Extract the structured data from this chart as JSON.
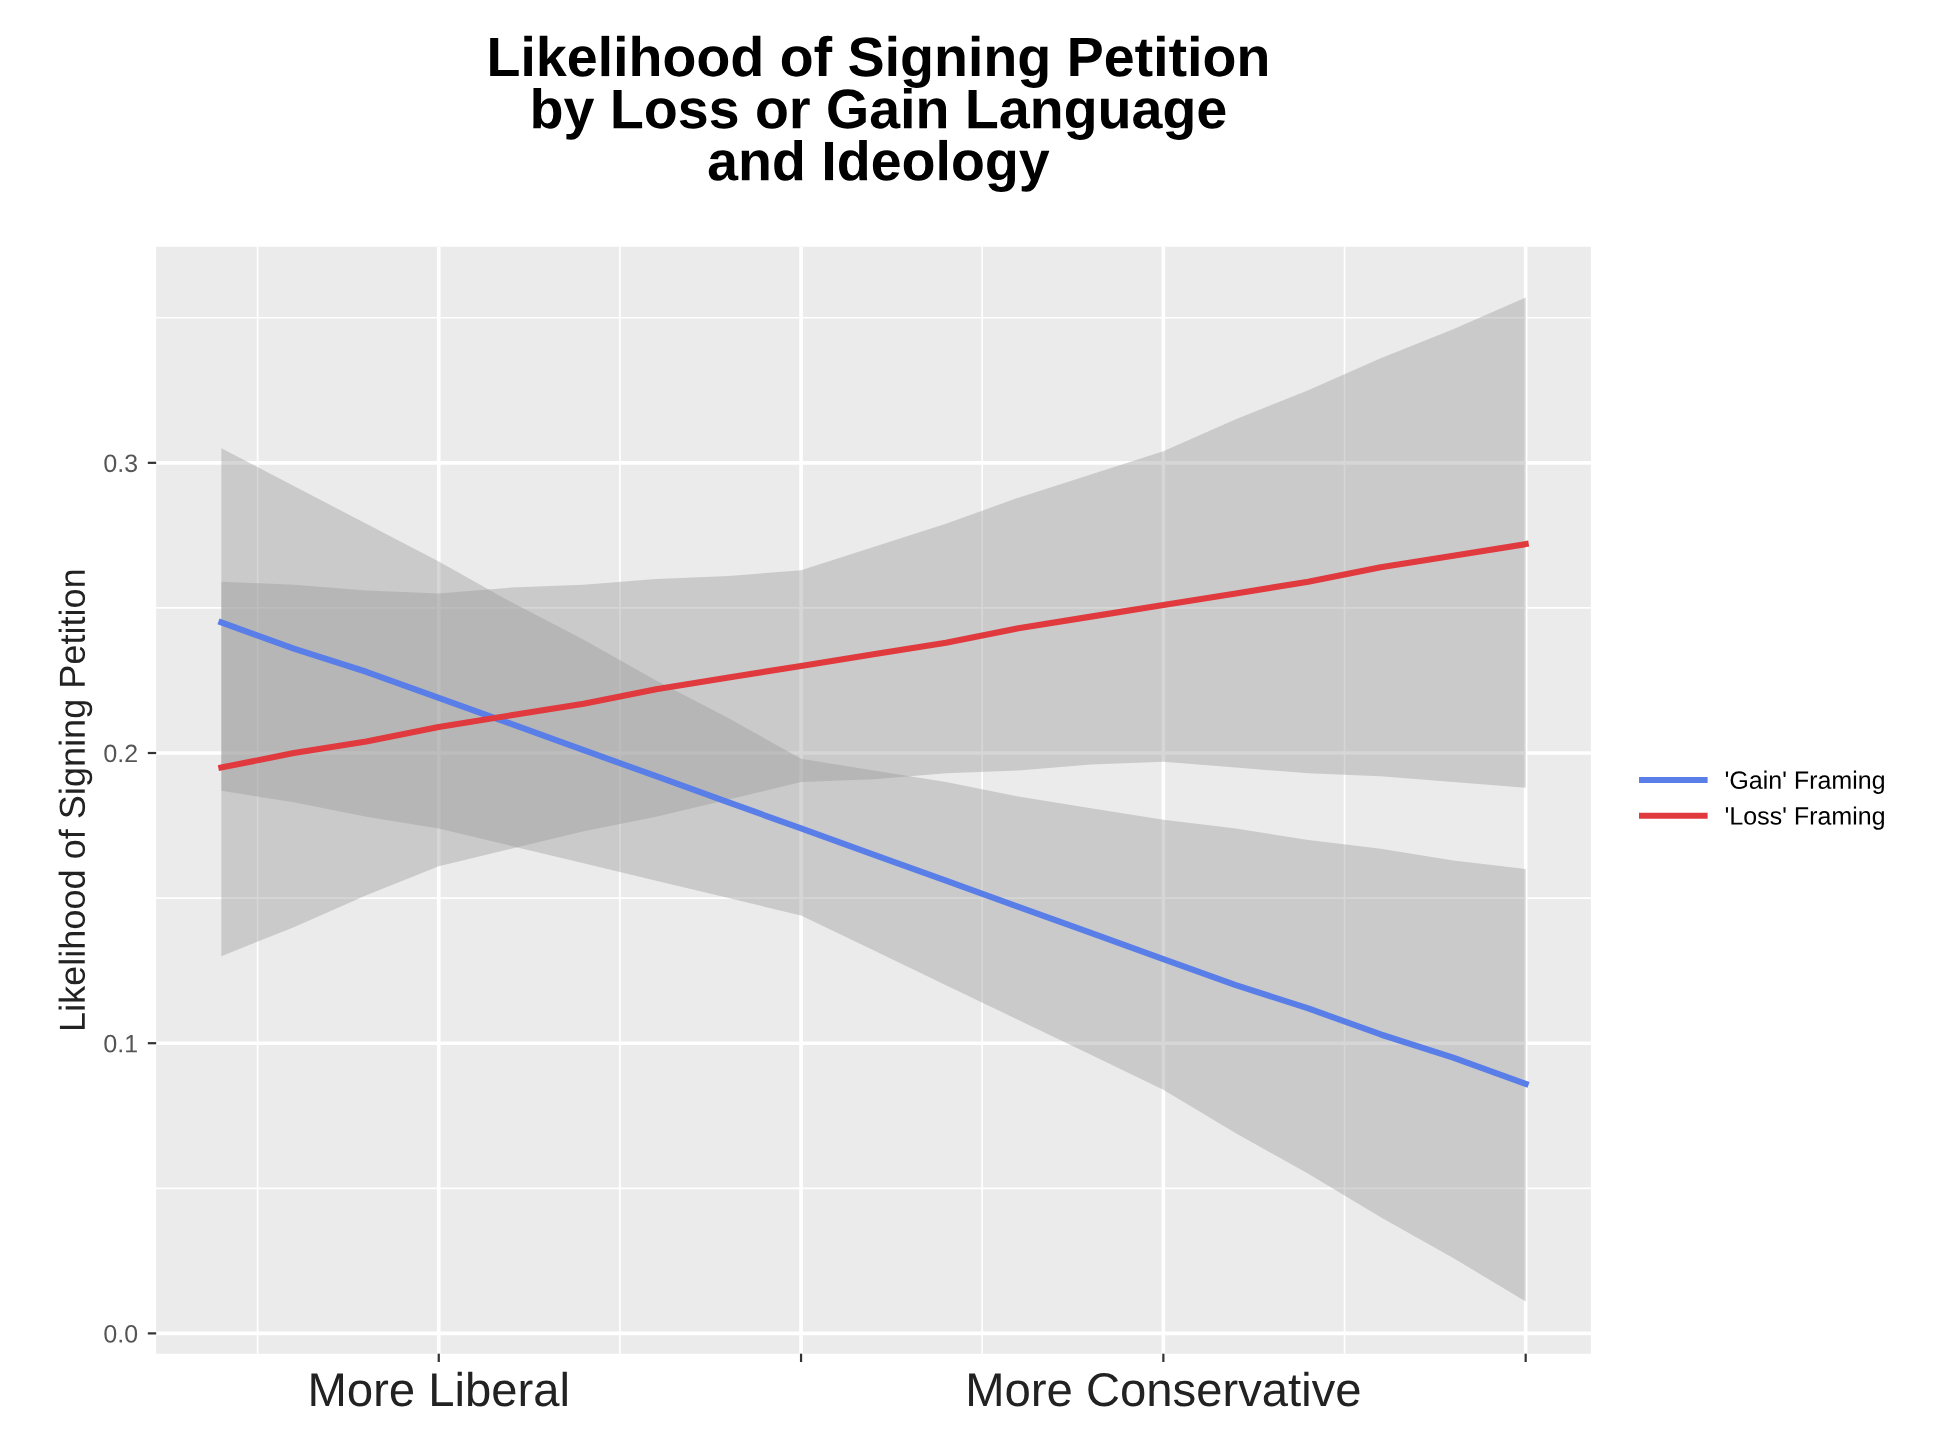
{
  "chart_data": {
    "type": "line",
    "title": "Likelihood of Signing Petition\nby Loss or Gain Language\nand Ideology",
    "ylabel": "Likelihood of Signing Petition",
    "categories": [
      null,
      null,
      null,
      "More Liberal",
      null,
      null,
      null,
      null,
      null,
      null,
      null,
      null,
      null,
      "More Conservative",
      null,
      null,
      null,
      null,
      null
    ],
    "series": [
      {
        "name": "'Gain' Framing",
        "color": "#5a7ee8",
        "values": [
          0.245,
          0.236,
          0.228,
          0.219,
          0.21,
          0.201,
          0.192,
          0.183,
          0.174,
          0.165,
          0.156,
          0.147,
          0.138,
          0.129,
          0.12,
          0.112,
          0.103,
          0.095,
          0.086
        ],
        "lower": [
          0.187,
          0.183,
          0.178,
          0.174,
          0.168,
          0.162,
          0.156,
          0.15,
          0.144,
          0.132,
          0.12,
          0.108,
          0.096,
          0.084,
          0.069,
          0.055,
          0.04,
          0.026,
          0.011
        ],
        "upper": [
          0.305,
          0.292,
          0.279,
          0.266,
          0.252,
          0.239,
          0.225,
          0.212,
          0.198,
          0.194,
          0.19,
          0.185,
          0.181,
          0.177,
          0.174,
          0.17,
          0.167,
          0.163,
          0.16
        ]
      },
      {
        "name": "'Loss' Framing",
        "color": "#e0393e",
        "values": [
          0.195,
          0.2,
          0.204,
          0.209,
          0.213,
          0.217,
          0.222,
          0.226,
          0.23,
          0.234,
          0.238,
          0.243,
          0.247,
          0.251,
          0.255,
          0.259,
          0.264,
          0.268,
          0.272
        ],
        "lower": [
          0.13,
          0.14,
          0.151,
          0.161,
          0.167,
          0.173,
          0.178,
          0.184,
          0.19,
          0.191,
          0.193,
          0.194,
          0.196,
          0.197,
          0.195,
          0.193,
          0.192,
          0.19,
          0.188
        ],
        "upper": [
          0.259,
          0.258,
          0.256,
          0.255,
          0.257,
          0.258,
          0.26,
          0.261,
          0.263,
          0.271,
          0.279,
          0.288,
          0.296,
          0.304,
          0.315,
          0.325,
          0.336,
          0.346,
          0.357
        ]
      }
    ],
    "ylim": [
      -0.007,
      0.3745
    ],
    "yticks": [
      {
        "value": 0,
        "label": "0.0"
      },
      {
        "value": 0.1,
        "label": "0.1"
      },
      {
        "value": 0.2,
        "label": "0.2"
      },
      {
        "value": 0.3,
        "label": "0.3"
      }
    ],
    "grid": true,
    "legend": "right",
    "marker": "none",
    "line_style": "solid"
  }
}
